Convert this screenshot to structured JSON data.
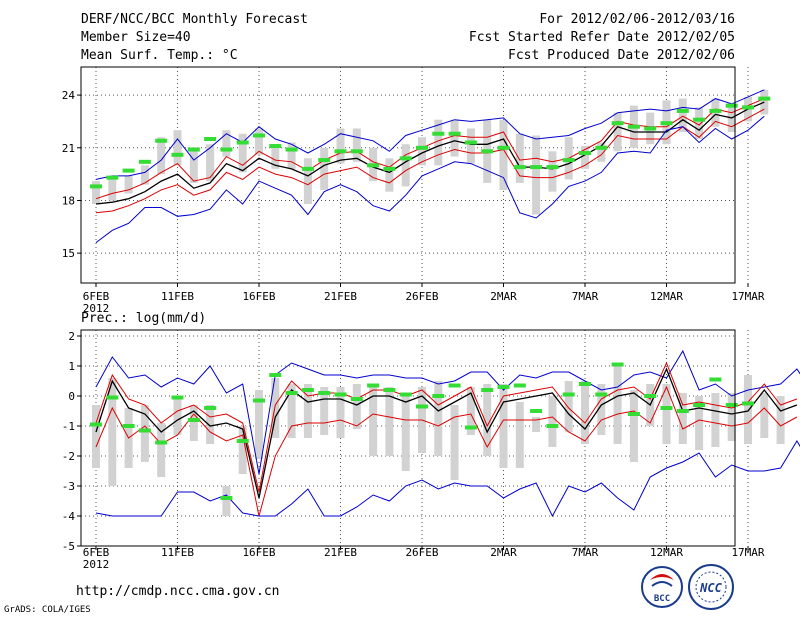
{
  "header": {
    "title": "DERF/NCC/BCC Monthly Forecast",
    "member": "Member Size=40",
    "variable": "Mean Surf. Temp.: °C",
    "period": "For 2012/02/06-2012/03/16",
    "refer": "Fcst Started Refer Date 2012/02/05",
    "produced": "Fcst Produced Date 2012/02/06"
  },
  "footer": {
    "url": "http://cmdp.ncc.cma.gov.cn",
    "credit": "GrADS: COLA/IGES",
    "bcc_logo": "BCC",
    "ncc_logo": "NCC"
  },
  "colors": {
    "blue": "#0000d0",
    "red": "#dd0000",
    "black": "#000000",
    "green": "#33dd33",
    "bar": "#d2d2d2"
  },
  "chart_data": [
    {
      "type": "line",
      "title": "Mean Surf. Temp.: °C",
      "x_ticks": [
        "6FEB",
        "11FEB",
        "16FEB",
        "21FEB",
        "26FEB",
        "2MAR",
        "7MAR",
        "12MAR",
        "17MAR"
      ],
      "x_tick_days": [
        0,
        5,
        10,
        15,
        20,
        25,
        30,
        35,
        40
      ],
      "x_sub_label": "2012",
      "ylim": [
        13.3,
        25.6
      ],
      "yticks": [
        15,
        18,
        21,
        24
      ],
      "n_days": 40,
      "series": [
        {
          "name": "max",
          "color": "blue",
          "values": [
            19.2,
            19.4,
            19.4,
            19.6,
            20.3,
            21.5,
            20.3,
            21.0,
            21.8,
            21.3,
            22.2,
            21.5,
            21.2,
            20.7,
            21.2,
            21.8,
            21.6,
            21.4,
            20.8,
            21.7,
            22.0,
            22.3,
            22.6,
            22.5,
            22.6,
            22.7,
            21.8,
            21.5,
            21.6,
            21.7,
            22.1,
            22.4,
            23.0,
            23.1,
            23.2,
            23.1,
            23.3,
            23.2,
            23.8,
            23.5,
            23.9,
            24.3
          ]
        },
        {
          "name": "upper",
          "color": "red",
          "values": [
            18.1,
            18.4,
            18.6,
            19.0,
            19.6,
            20.1,
            19.1,
            19.3,
            20.5,
            20.0,
            20.8,
            20.3,
            20.2,
            19.7,
            20.3,
            20.7,
            20.8,
            20.2,
            19.9,
            20.6,
            21.0,
            21.4,
            21.7,
            21.6,
            21.6,
            21.9,
            20.3,
            20.4,
            20.2,
            20.4,
            20.9,
            21.4,
            22.5,
            22.3,
            22.2,
            22.2,
            22.8,
            22.3,
            23.2,
            23.0,
            23.4,
            23.8
          ]
        },
        {
          "name": "mean",
          "color": "black",
          "values": [
            17.8,
            17.9,
            18.1,
            18.5,
            19.1,
            19.5,
            18.7,
            19.0,
            20.1,
            19.7,
            20.4,
            20.0,
            19.8,
            19.4,
            20.0,
            20.3,
            20.4,
            19.9,
            19.6,
            20.2,
            20.7,
            21.1,
            21.4,
            21.2,
            21.2,
            21.5,
            19.9,
            19.9,
            19.8,
            20.1,
            20.6,
            21.1,
            22.2,
            21.9,
            21.9,
            21.9,
            22.6,
            22.0,
            22.9,
            22.7,
            23.2,
            23.6
          ]
        },
        {
          "name": "lower",
          "color": "red",
          "values": [
            17.3,
            17.4,
            17.7,
            18.1,
            18.6,
            18.9,
            18.3,
            18.6,
            19.6,
            19.2,
            19.9,
            19.5,
            19.3,
            18.9,
            19.5,
            19.7,
            19.9,
            19.3,
            19.0,
            19.7,
            20.2,
            20.6,
            20.9,
            20.7,
            20.7,
            20.9,
            19.4,
            19.3,
            19.3,
            19.6,
            20.0,
            20.6,
            21.7,
            21.5,
            21.5,
            21.5,
            22.2,
            21.6,
            22.5,
            22.2,
            22.7,
            23.2
          ]
        },
        {
          "name": "min",
          "color": "blue",
          "values": [
            15.6,
            16.3,
            16.7,
            17.6,
            17.6,
            17.1,
            17.2,
            17.5,
            18.6,
            17.8,
            19.1,
            18.7,
            18.3,
            17.2,
            18.5,
            18.9,
            18.5,
            17.7,
            17.4,
            18.3,
            19.4,
            19.8,
            20.2,
            20.1,
            19.7,
            19.3,
            17.3,
            17.0,
            17.8,
            18.8,
            19.1,
            19.6,
            20.7,
            20.8,
            20.7,
            22.0,
            22.2,
            21.3,
            22.1,
            21.5,
            22.0,
            22.8
          ]
        }
      ],
      "box_bars": [
        [
          17.8,
          19.1
        ],
        [
          18.0,
          19.3
        ],
        [
          18.4,
          19.4
        ],
        [
          18.9,
          20.0
        ],
        [
          19.5,
          21.6
        ],
        [
          20.0,
          22.0
        ],
        [
          19.0,
          20.8
        ],
        [
          19.1,
          21.2
        ],
        [
          20.5,
          22.0
        ],
        [
          19.6,
          21.8
        ],
        [
          20.6,
          22.1
        ],
        [
          19.8,
          21.1
        ],
        [
          19.8,
          21.3
        ],
        [
          17.8,
          20.4
        ],
        [
          18.6,
          21.0
        ],
        [
          20.1,
          22.1
        ],
        [
          20.2,
          22.1
        ],
        [
          19.1,
          21.0
        ],
        [
          18.5,
          20.4
        ],
        [
          18.8,
          21.2
        ],
        [
          20.0,
          21.6
        ],
        [
          20.0,
          22.6
        ],
        [
          20.5,
          22.6
        ],
        [
          20.1,
          22.1
        ],
        [
          19.0,
          22.6
        ],
        [
          18.6,
          22.6
        ],
        [
          19.0,
          21.8
        ],
        [
          17.2,
          21.7
        ],
        [
          18.5,
          20.8
        ],
        [
          19.2,
          21.6
        ],
        [
          19.8,
          21.1
        ],
        [
          20.2,
          21.3
        ],
        [
          20.8,
          23.0
        ],
        [
          21.0,
          23.4
        ],
        [
          21.2,
          23.0
        ],
        [
          21.2,
          23.7
        ],
        [
          21.9,
          23.8
        ],
        [
          21.5,
          23.3
        ],
        [
          22.2,
          23.8
        ],
        [
          21.9,
          23.5
        ],
        [
          22.5,
          23.9
        ],
        [
          22.9,
          24.3
        ]
      ],
      "markers": [
        18.8,
        19.3,
        19.7,
        20.2,
        21.4,
        20.6,
        20.9,
        21.5,
        20.9,
        21.3,
        21.7,
        21.1,
        20.9,
        19.8,
        20.3,
        20.8,
        20.8,
        20.0,
        19.8,
        20.4,
        21.0,
        21.8,
        21.8,
        21.3,
        20.8,
        21.0,
        19.9,
        19.9,
        19.9,
        20.3,
        20.7,
        21.0,
        22.4,
        22.2,
        22.1,
        22.4,
        23.1,
        22.6,
        23.1,
        23.4,
        23.3,
        23.8
      ]
    },
    {
      "type": "line",
      "title": "Prec.: log(mm/d)",
      "x_ticks": [
        "6FEB",
        "11FEB",
        "16FEB",
        "21FEB",
        "26FEB",
        "2MAR",
        "7MAR",
        "12MAR",
        "17MAR"
      ],
      "x_tick_days": [
        0,
        5,
        10,
        15,
        20,
        25,
        30,
        35,
        40
      ],
      "x_sub_label": "2012",
      "ylim": [
        -5,
        2.2
      ],
      "yticks": [
        -5,
        -4,
        -3,
        -2,
        -1,
        0,
        1,
        2
      ],
      "n_days": 40,
      "series": [
        {
          "name": "max",
          "color": "blue",
          "values": [
            0.3,
            1.3,
            0.6,
            0.7,
            0.3,
            0.6,
            0.4,
            1.0,
            0.1,
            0.4,
            -2.6,
            0.7,
            1.1,
            0.9,
            0.7,
            0.7,
            0.6,
            0.7,
            0.7,
            0.6,
            0.6,
            0.4,
            0.5,
            0.8,
            0.8,
            0.2,
            0.7,
            0.6,
            0.8,
            0.8,
            0.5,
            0.2,
            0.3,
            0.7,
            0.8,
            0.6,
            1.5,
            0.2,
            0.4,
            0.0,
            0.2,
            0.3,
            0.4,
            0.9,
            0.1,
            0.3
          ]
        },
        {
          "name": "upper",
          "color": "red",
          "values": [
            -0.9,
            0.7,
            -0.1,
            -0.3,
            -0.9,
            -0.5,
            -0.3,
            -0.7,
            -0.6,
            -0.9,
            -3.2,
            -0.3,
            0.5,
            0.0,
            0.1,
            0.1,
            -0.1,
            0.2,
            0.2,
            0.0,
            0.2,
            -0.3,
            0.0,
            0.3,
            -1.0,
            0.0,
            0.1,
            0.2,
            0.3,
            -0.4,
            -0.9,
            -0.1,
            0.2,
            0.3,
            -0.1,
            1.1,
            -0.3,
            -0.2,
            -0.3,
            -0.4,
            -0.2,
            0.4,
            -0.3,
            -0.1
          ]
        },
        {
          "name": "mean",
          "color": "black",
          "values": [
            -1.2,
            0.5,
            -0.4,
            -0.6,
            -1.2,
            -0.8,
            -0.5,
            -1.0,
            -0.9,
            -1.1,
            -3.4,
            -0.7,
            0.2,
            -0.2,
            -0.1,
            -0.1,
            -0.3,
            0.0,
            0.0,
            -0.2,
            0.0,
            -0.5,
            -0.2,
            0.1,
            -1.2,
            -0.2,
            -0.1,
            0.0,
            0.1,
            -0.6,
            -1.1,
            -0.3,
            0.0,
            0.1,
            -0.3,
            0.9,
            -0.5,
            -0.4,
            -0.5,
            -0.6,
            -0.5,
            0.2,
            -0.5,
            -0.3
          ]
        },
        {
          "name": "lower",
          "color": "red",
          "values": [
            -1.7,
            -0.4,
            -1.4,
            -1.0,
            -1.6,
            -1.3,
            -0.6,
            -1.2,
            -1.5,
            -1.3,
            -4.0,
            -2.0,
            -1.0,
            -0.9,
            -0.9,
            -0.8,
            -1.0,
            -0.6,
            -0.7,
            -0.8,
            -0.8,
            -1.0,
            -0.7,
            -0.6,
            -1.7,
            -0.8,
            -0.8,
            -0.8,
            -0.7,
            -1.2,
            -1.5,
            -0.8,
            -0.6,
            -0.5,
            -0.9,
            0.3,
            -1.1,
            -0.8,
            -0.9,
            -1.0,
            -0.9,
            -0.4,
            -1.0,
            -0.7
          ]
        },
        {
          "name": "min",
          "color": "blue",
          "values": [
            -3.9,
            -4.0,
            -4.0,
            -4.0,
            -4.0,
            -3.2,
            -3.2,
            -3.5,
            -3.3,
            -3.9,
            -4.0,
            -4.0,
            -3.6,
            -3.1,
            -4.0,
            -4.0,
            -3.7,
            -3.3,
            -3.5,
            -3.0,
            -2.8,
            -3.1,
            -2.9,
            -3.0,
            -3.0,
            -3.4,
            -3.1,
            -2.9,
            -4.0,
            -3.0,
            -3.2,
            -2.9,
            -3.4,
            -3.8,
            -2.7,
            -2.4,
            -2.2,
            -1.9,
            -2.7,
            -2.3,
            -2.5,
            -2.5,
            -2.4,
            -1.5,
            -2.4,
            -2.3
          ]
        },
        {
          "name": "none",
          "color": "blue",
          "values": []
        }
      ],
      "box_bars": [
        [
          -2.4,
          -0.3
        ],
        [
          -3.0,
          0.6
        ],
        [
          -2.4,
          -0.4
        ],
        [
          -2.2,
          -0.3
        ],
        [
          -2.7,
          -0.9
        ],
        [
          -1.3,
          -0.1
        ],
        [
          -1.5,
          -0.3
        ],
        [
          -1.6,
          -0.3
        ],
        [
          -4.0,
          -3.0
        ],
        [
          -2.6,
          -1.0
        ],
        [
          -2.1,
          0.2
        ],
        [
          -1.4,
          0.6
        ],
        [
          -1.4,
          0.4
        ],
        [
          -1.4,
          0.4
        ],
        [
          -1.3,
          0.3
        ],
        [
          -1.4,
          0.3
        ],
        [
          -1.1,
          0.4
        ],
        [
          -2.0,
          0.4
        ],
        [
          -2.0,
          0.3
        ],
        [
          -2.5,
          0.1
        ],
        [
          -1.9,
          0.3
        ],
        [
          -2.0,
          0.5
        ],
        [
          -2.8,
          -0.3
        ],
        [
          -1.3,
          0.3
        ],
        [
          -2.0,
          0.4
        ],
        [
          -2.4,
          0.4
        ],
        [
          -2.4,
          -0.2
        ],
        [
          -1.2,
          -0.7
        ],
        [
          -1.7,
          0.0
        ],
        [
          -1.2,
          0.5
        ],
        [
          -1.6,
          0.5
        ],
        [
          -1.3,
          0.4
        ],
        [
          -1.6,
          1.1
        ],
        [
          -2.2,
          0.2
        ],
        [
          -1.0,
          0.4
        ],
        [
          -1.6,
          0.4
        ],
        [
          -1.6,
          0.1
        ],
        [
          -1.8,
          0.0
        ],
        [
          -1.7,
          0.1
        ],
        [
          -1.5,
          0.1
        ],
        [
          -1.6,
          0.7
        ],
        [
          -1.4,
          0.1
        ],
        [
          -1.6,
          0.0
        ]
      ],
      "markers": [
        -0.95,
        -0.05,
        -1.0,
        -1.15,
        -1.55,
        -0.05,
        -0.8,
        -0.4,
        -3.4,
        -1.5,
        -0.15,
        0.7,
        0.1,
        0.2,
        0.1,
        0.05,
        -0.1,
        0.35,
        0.2,
        0.05,
        -0.35,
        0.0,
        0.35,
        -1.05,
        0.2,
        0.3,
        0.35,
        -0.5,
        -1.0,
        0.05,
        0.4,
        0.05,
        1.05,
        -0.6,
        0.0,
        -0.4,
        -0.5,
        -0.3,
        0.55,
        -0.3,
        -0.25
      ]
    }
  ]
}
